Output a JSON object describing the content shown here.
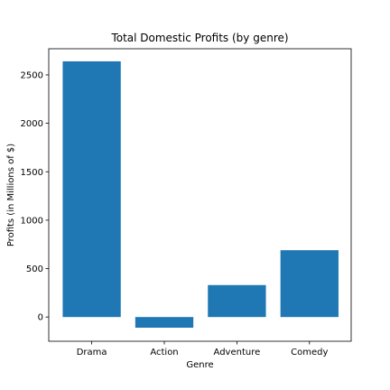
{
  "chart_data": {
    "type": "bar",
    "title": "Total Domestic Profits (by genre)",
    "xlabel": "Genre",
    "ylabel": "Profits (in Millions of $)",
    "categories": [
      "Drama",
      "Action",
      "Adventure",
      "Comedy"
    ],
    "values": [
      2640,
      -110,
      330,
      690
    ],
    "ylim": [
      -250,
      2770
    ],
    "yticks": [
      0,
      500,
      1000,
      1500,
      2000,
      2500
    ],
    "grid": false,
    "bar_color": "#1f77b4",
    "axis_color": "#000000",
    "background": "#ffffff"
  }
}
